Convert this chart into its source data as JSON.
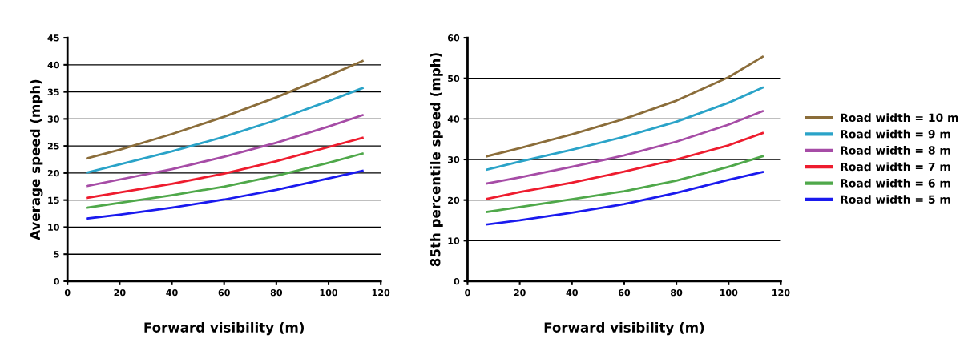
{
  "chart_data": [
    {
      "type": "line",
      "xlabel": "Forward visibility (m)",
      "ylabel": "Average speed (mph)",
      "x": [
        7.5,
        20,
        40,
        60,
        80,
        100,
        113
      ],
      "xlim": [
        0,
        120
      ],
      "xticks": [
        0,
        20,
        40,
        60,
        80,
        100,
        120
      ],
      "ylim": [
        0,
        45
      ],
      "yticks": [
        0,
        5,
        10,
        15,
        20,
        25,
        30,
        35,
        40,
        45
      ],
      "grid": "y",
      "legend": false,
      "marker": "none",
      "line_style": "solid",
      "series": [
        {
          "color": "#8b6d3a",
          "values": [
            22.7,
            24.3,
            27.2,
            30.4,
            34.0,
            38.0,
            40.7
          ]
        },
        {
          "color": "#2aa3c8",
          "values": [
            20.1,
            21.6,
            24.0,
            26.7,
            29.8,
            33.3,
            35.7
          ]
        },
        {
          "color": "#a64ca6",
          "values": [
            17.6,
            18.8,
            20.7,
            23.0,
            25.6,
            28.6,
            30.7
          ]
        },
        {
          "color": "#ee1c2e",
          "values": [
            15.4,
            16.4,
            18.0,
            19.9,
            22.2,
            24.8,
            26.5
          ]
        },
        {
          "color": "#4fa84a",
          "values": [
            13.6,
            14.5,
            15.9,
            17.5,
            19.5,
            21.9,
            23.6
          ]
        },
        {
          "color": "#1a1aee",
          "values": [
            11.6,
            12.3,
            13.6,
            15.1,
            16.9,
            19.0,
            20.4
          ]
        }
      ]
    },
    {
      "type": "line",
      "xlabel": "Forward visibility (m)",
      "ylabel": "85th percentile speed (mph)",
      "x": [
        7.5,
        20,
        40,
        60,
        80,
        100,
        113
      ],
      "xlim": [
        0,
        120
      ],
      "xticks": [
        0,
        20,
        40,
        60,
        80,
        100,
        120
      ],
      "ylim": [
        0,
        60
      ],
      "yticks": [
        0,
        10,
        20,
        30,
        40,
        50,
        60
      ],
      "grid": "y",
      "legend": "right",
      "marker": "none",
      "line_style": "solid",
      "series": [
        {
          "name": "Road width = 10 m",
          "color": "#8b6d3a",
          "values": [
            30.8,
            32.8,
            36.2,
            40.0,
            44.5,
            50.3,
            55.3
          ]
        },
        {
          "name": "Road width = 9 m",
          "color": "#2aa3c8",
          "values": [
            27.5,
            29.5,
            32.4,
            35.6,
            39.3,
            44.0,
            47.7
          ]
        },
        {
          "name": "Road width = 8 m",
          "color": "#a64ca6",
          "values": [
            24.1,
            25.6,
            28.2,
            31.0,
            34.4,
            38.6,
            41.9
          ]
        },
        {
          "name": "Road width = 7 m",
          "color": "#ee1c2e",
          "values": [
            20.3,
            22.0,
            24.3,
            27.0,
            30.0,
            33.5,
            36.5
          ]
        },
        {
          "name": "Road width = 6 m",
          "color": "#4fa84a",
          "values": [
            17.1,
            18.3,
            20.2,
            22.2,
            24.8,
            28.2,
            30.8
          ]
        },
        {
          "name": "Road width = 5 m",
          "color": "#1a1aee",
          "values": [
            14.0,
            15.0,
            16.9,
            19.0,
            21.8,
            25.0,
            26.9
          ]
        }
      ]
    }
  ]
}
